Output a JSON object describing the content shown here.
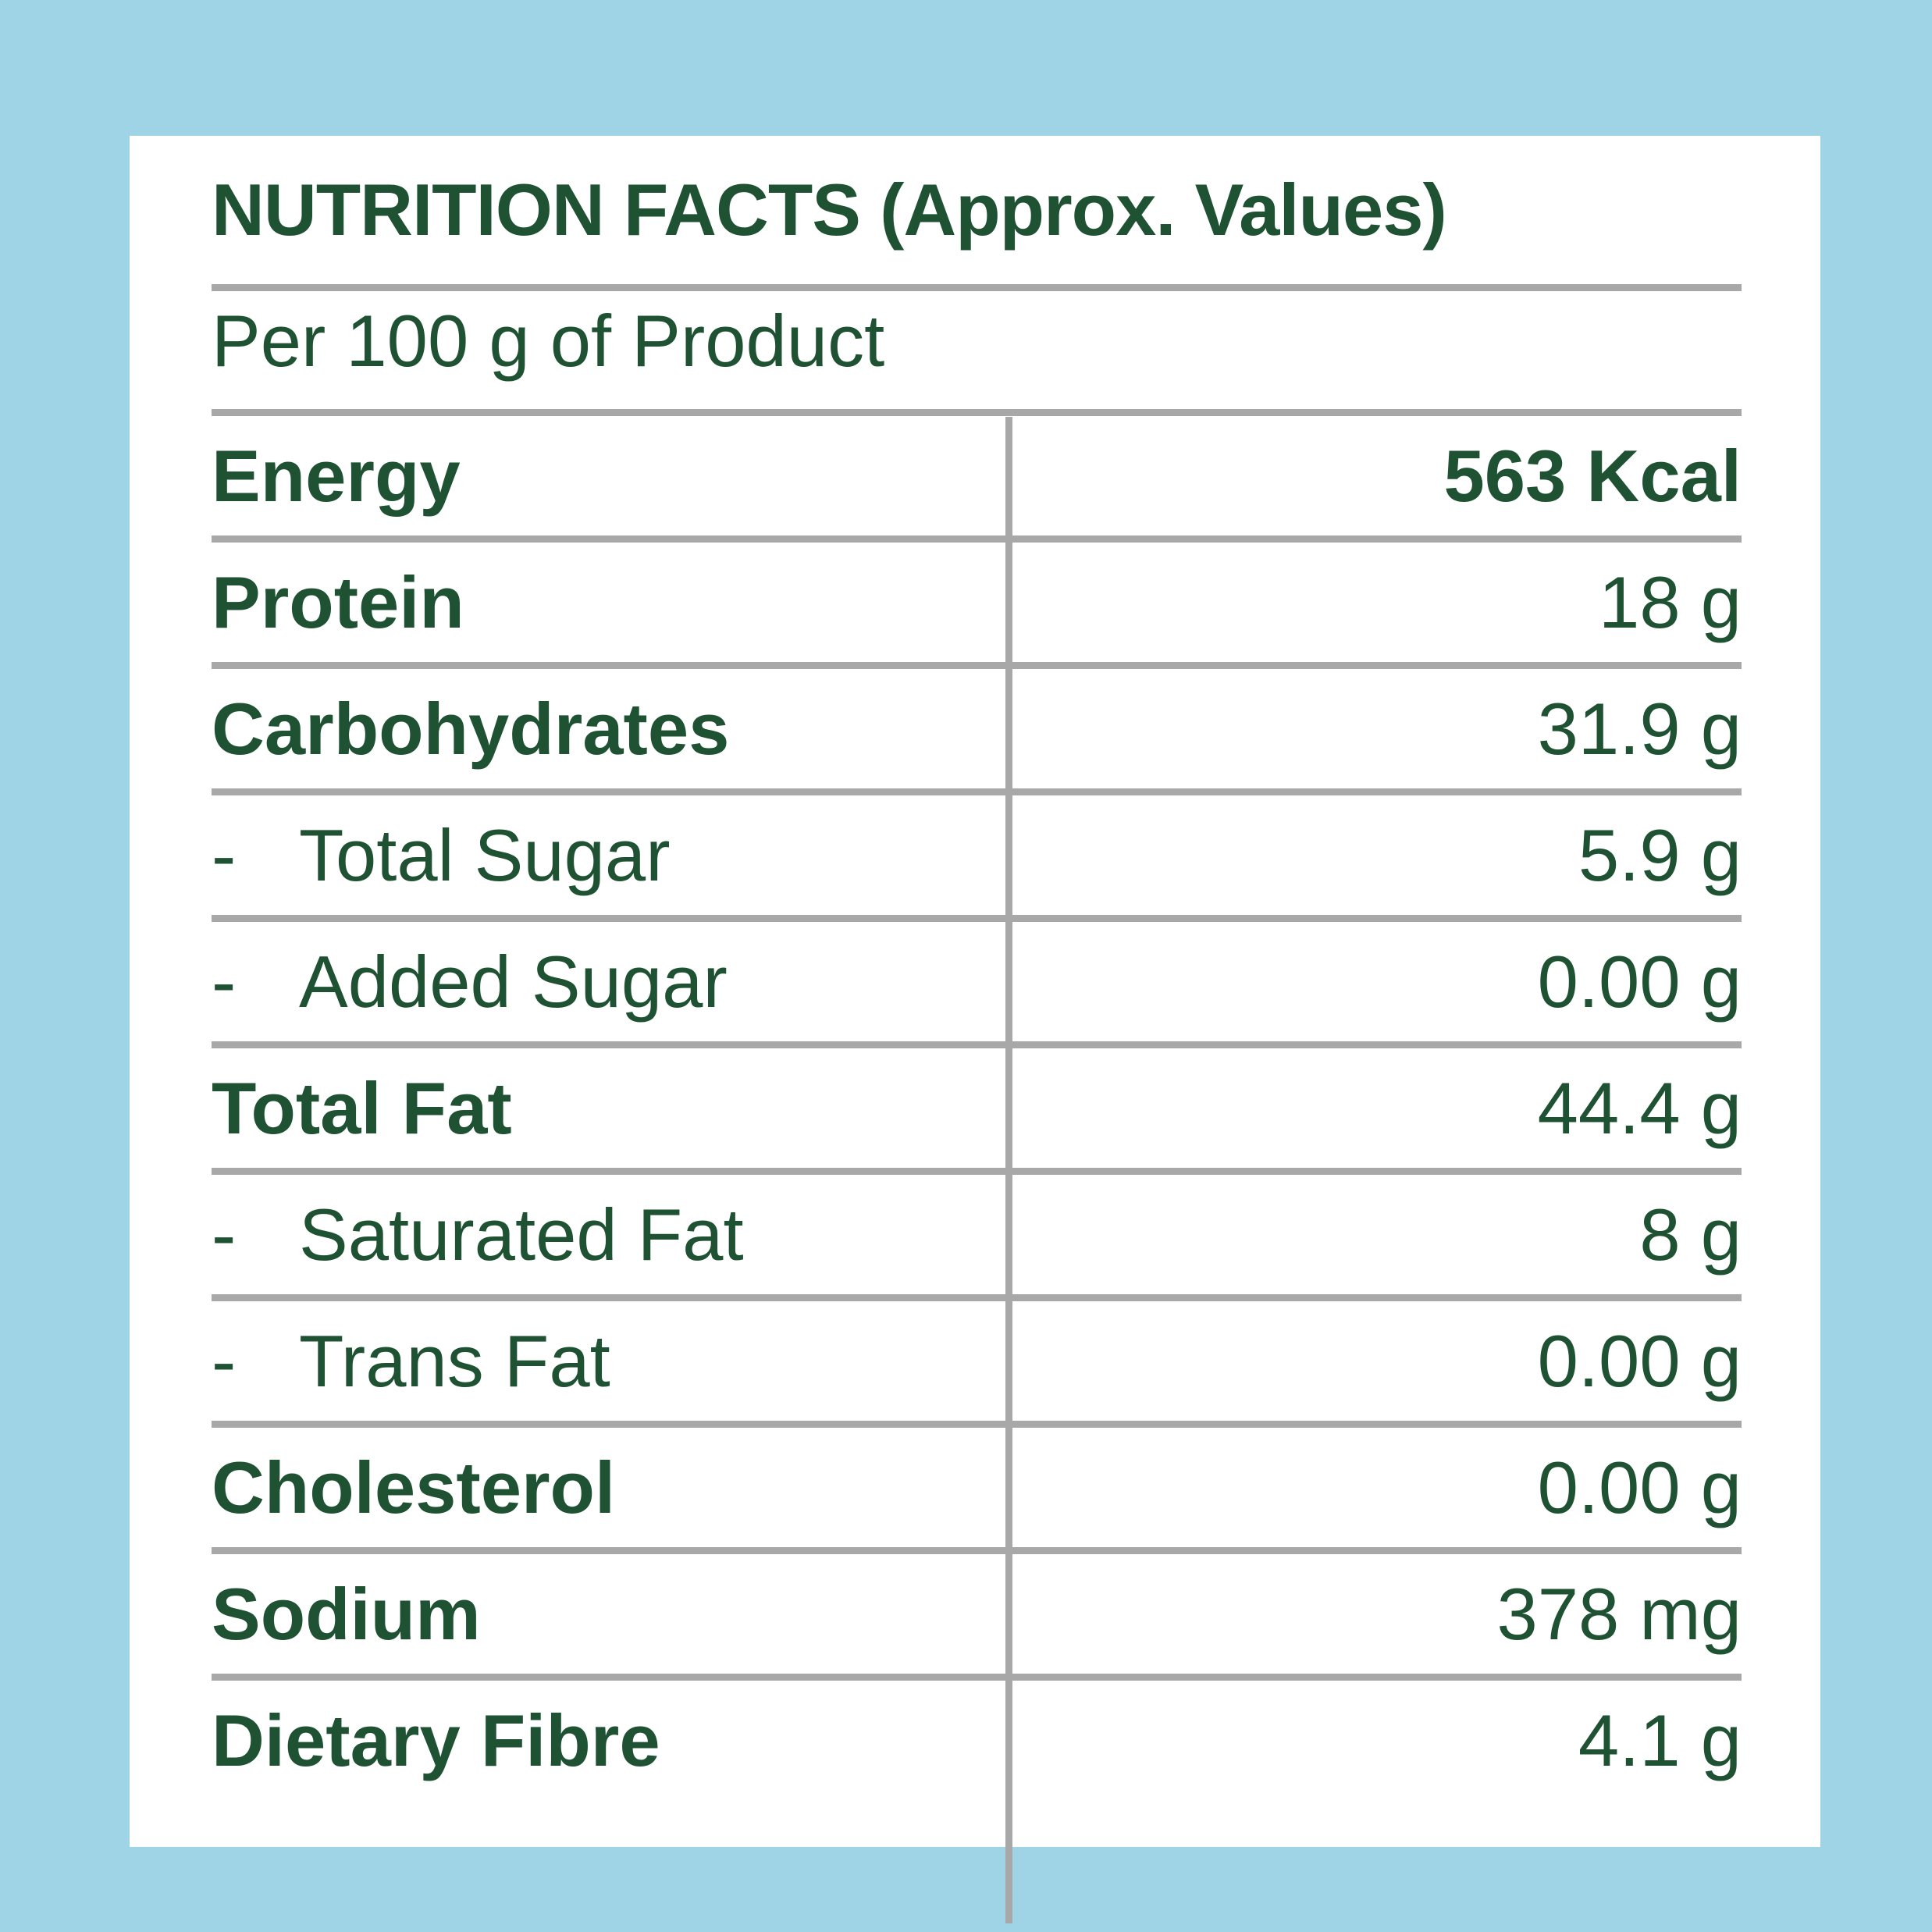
{
  "label": {
    "title": "NUTRITION FACTS (Approx. Values)",
    "subtitle": "Per 100 g of Product",
    "sub_marker": "-",
    "rows": [
      {
        "name": "Energy",
        "value": "563 Kcal",
        "bold_label": true,
        "bold_value": true,
        "sub": false
      },
      {
        "name": "Protein",
        "value": "18 g",
        "bold_label": true,
        "bold_value": false,
        "sub": false
      },
      {
        "name": "Carbohydrates",
        "value": "31.9 g",
        "bold_label": true,
        "bold_value": false,
        "sub": false
      },
      {
        "name": "Total Sugar",
        "value": "5.9 g",
        "bold_label": false,
        "bold_value": false,
        "sub": true
      },
      {
        "name": "Added Sugar",
        "value": "0.00 g",
        "bold_label": false,
        "bold_value": false,
        "sub": true
      },
      {
        "name": "Total Fat",
        "value": "44.4 g",
        "bold_label": true,
        "bold_value": false,
        "sub": false
      },
      {
        "name": "Saturated Fat",
        "value": "8 g",
        "bold_label": false,
        "bold_value": false,
        "sub": true
      },
      {
        "name": "Trans Fat",
        "value": "0.00 g",
        "bold_label": false,
        "bold_value": false,
        "sub": true
      },
      {
        "name": "Cholesterol",
        "value": "0.00 g",
        "bold_label": true,
        "bold_value": false,
        "sub": false
      },
      {
        "name": "Sodium",
        "value": "378 mg",
        "bold_label": true,
        "bold_value": false,
        "sub": false
      },
      {
        "name": "Dietary Fibre",
        "value": "4.1 g",
        "bold_label": true,
        "bold_value": false,
        "sub": false
      }
    ]
  },
  "colors": {
    "background": "#9fd3e6",
    "panel": "#ffffff",
    "text": "#1f5233",
    "rule": "#a8a8a8"
  }
}
